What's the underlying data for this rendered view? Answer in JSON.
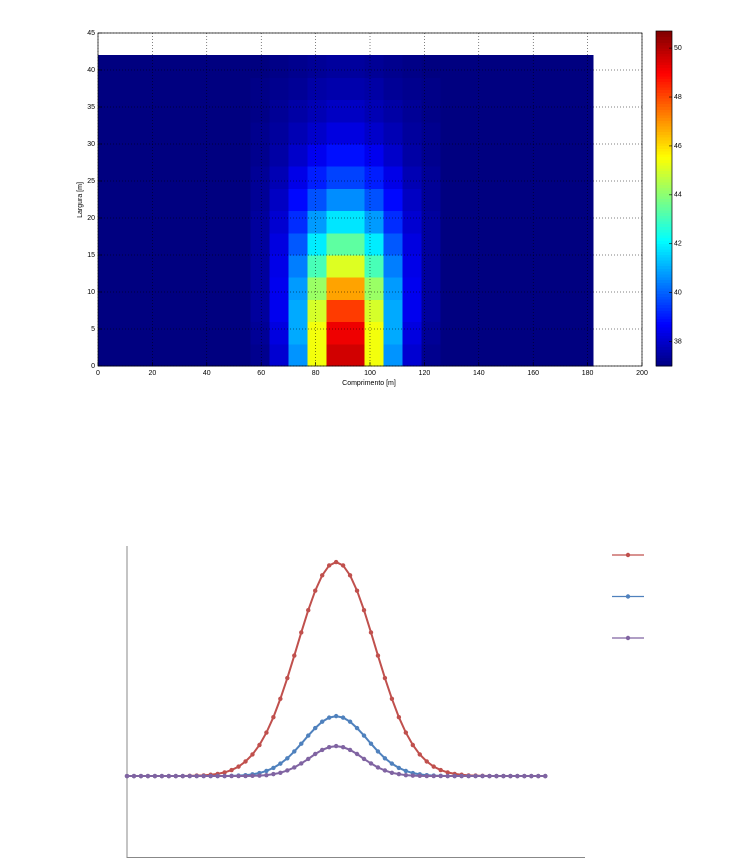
{
  "chart_data": [
    {
      "type": "heatmap",
      "xlabel": "Comprimento [m]",
      "ylabel": "Largura [m]",
      "xlim": [
        0,
        200
      ],
      "ylim": [
        0,
        45
      ],
      "xticks": [
        0,
        20,
        40,
        60,
        80,
        100,
        120,
        140,
        160,
        180,
        200
      ],
      "yticks": [
        0,
        5,
        10,
        15,
        20,
        25,
        30,
        35,
        40,
        45
      ],
      "grid": true,
      "colormap": "jet",
      "clim": [
        37,
        50.7
      ],
      "cticks": [
        38,
        40,
        42,
        44,
        46,
        48,
        50
      ],
      "xbins": [
        0,
        7,
        14,
        21,
        28,
        35,
        42,
        49,
        56,
        63,
        70,
        77,
        84,
        91,
        98,
        105,
        112,
        119,
        126,
        133,
        140,
        147,
        154,
        161,
        168,
        175,
        182
      ],
      "ybins": [
        0,
        3,
        6,
        9,
        12,
        15,
        18,
        21,
        24,
        27,
        30,
        33,
        36,
        39,
        42
      ],
      "z": [
        [
          37,
          37,
          37,
          37,
          37,
          37,
          37,
          37,
          37.2,
          38.1,
          40.7,
          45.4,
          49.6,
          49.6,
          45.4,
          40.7,
          38.1,
          37.2,
          37,
          37,
          37,
          37,
          37,
          37,
          37,
          37
        ],
        [
          37,
          37,
          37,
          37,
          37,
          37,
          37,
          37,
          37.3,
          38.3,
          41,
          45.4,
          49.2,
          49.2,
          45.4,
          41,
          38.3,
          37.3,
          37,
          37,
          37,
          37,
          37,
          37,
          37,
          37
        ],
        [
          37,
          37,
          37,
          37,
          37,
          37,
          37,
          37,
          37.4,
          38.5,
          41,
          45,
          48.2,
          48.2,
          45,
          41,
          38.5,
          37.4,
          37,
          37,
          37,
          37,
          37,
          37,
          37,
          37
        ],
        [
          37,
          37,
          37,
          37,
          37,
          37,
          37,
          37,
          37.4,
          38.5,
          40.8,
          44.2,
          46.8,
          46.8,
          44.2,
          40.8,
          38.5,
          37.4,
          37,
          37,
          37,
          37,
          37,
          37,
          37,
          37
        ],
        [
          37,
          37,
          37,
          37,
          37,
          37,
          37,
          37,
          37.4,
          38.4,
          40.4,
          43.1,
          45.1,
          45.1,
          43.1,
          40.4,
          38.4,
          37.4,
          37,
          37,
          37,
          37,
          37,
          37,
          37,
          37
        ],
        [
          37,
          37,
          37,
          37,
          37,
          37,
          37,
          37,
          37.4,
          38.3,
          39.9,
          41.9,
          43.4,
          43.4,
          41.9,
          39.9,
          38.3,
          37.4,
          37,
          37,
          37,
          37,
          37,
          37,
          37,
          37
        ],
        [
          37,
          37,
          37,
          37,
          37,
          37,
          37,
          37,
          37.4,
          38.1,
          39.3,
          40.8,
          41.8,
          41.8,
          40.8,
          39.3,
          38.1,
          37.4,
          37,
          37,
          37,
          37,
          37,
          37,
          37,
          37
        ],
        [
          37,
          37,
          37,
          37,
          37,
          37,
          37,
          37,
          37.3,
          37.9,
          38.8,
          39.8,
          40.6,
          40.6,
          39.8,
          38.8,
          37.9,
          37.3,
          37,
          37,
          37,
          37,
          37,
          37,
          37,
          37
        ],
        [
          37,
          37,
          37,
          37,
          37,
          37,
          37,
          37,
          37.3,
          37.7,
          38.4,
          39.1,
          39.6,
          39.6,
          39.1,
          38.4,
          37.7,
          37.3,
          37,
          37,
          37,
          37,
          37,
          37,
          37,
          37
        ],
        [
          37,
          37,
          37,
          37,
          37,
          37,
          37,
          37,
          37.2,
          37.5,
          38,
          38.5,
          38.9,
          38.9,
          38.5,
          38,
          37.5,
          37.2,
          37,
          37,
          37,
          37,
          37,
          37,
          37,
          37
        ],
        [
          37,
          37,
          37,
          37,
          37,
          37,
          37,
          37,
          37.2,
          37.4,
          37.7,
          38,
          38.3,
          38.3,
          38,
          37.7,
          37.4,
          37.2,
          37,
          37,
          37,
          37,
          37,
          37,
          37,
          37
        ],
        [
          37,
          37,
          37,
          37,
          37,
          37,
          37,
          37,
          37.1,
          37.3,
          37.5,
          37.7,
          37.9,
          37.9,
          37.7,
          37.5,
          37.3,
          37.1,
          37,
          37,
          37,
          37,
          37,
          37,
          37,
          37
        ],
        [
          37,
          37,
          37,
          37,
          37,
          37,
          37,
          37,
          37.1,
          37.2,
          37.3,
          37.5,
          37.6,
          37.6,
          37.5,
          37.3,
          37.2,
          37.1,
          37,
          37,
          37,
          37,
          37,
          37,
          37,
          37
        ],
        [
          37,
          37,
          37,
          37,
          37,
          37,
          37,
          37,
          37,
          37.1,
          37.2,
          37.3,
          37.4,
          37.4,
          37.3,
          37.2,
          37.1,
          37,
          37,
          37,
          37,
          37,
          37,
          37,
          37,
          37
        ]
      ]
    },
    {
      "type": "line",
      "xlim": [
        0,
        65.7
      ],
      "ylim": [
        -0.383,
        1.075
      ],
      "legend": "upper right",
      "x": [
        0,
        1,
        2,
        3,
        4,
        5,
        6,
        7,
        8,
        9,
        10,
        11,
        12,
        13,
        14,
        15,
        16,
        17,
        18,
        19,
        20,
        21,
        22,
        23,
        24,
        25,
        26,
        27,
        28,
        29,
        30,
        31,
        32,
        33,
        34,
        35,
        36,
        37,
        38,
        39,
        40,
        41,
        42,
        43,
        44,
        45,
        46,
        47,
        48,
        49,
        50,
        51,
        52,
        53,
        54,
        55,
        56,
        57,
        58,
        59,
        60
      ],
      "series": [
        {
          "color": "#c0504d",
          "values": [
            0,
            0,
            0,
            0,
            0,
            0,
            0,
            0,
            0,
            0.001,
            0.002,
            0.003,
            0.006,
            0.01,
            0.017,
            0.028,
            0.044,
            0.068,
            0.101,
            0.145,
            0.203,
            0.275,
            0.361,
            0.458,
            0.563,
            0.671,
            0.775,
            0.866,
            0.938,
            0.984,
            1,
            0.984,
            0.938,
            0.866,
            0.775,
            0.671,
            0.563,
            0.458,
            0.361,
            0.275,
            0.203,
            0.145,
            0.101,
            0.068,
            0.044,
            0.028,
            0.017,
            0.01,
            0.006,
            0.003,
            0.002,
            0.001,
            0,
            0,
            0,
            0,
            0,
            0,
            0,
            0,
            0
          ]
        },
        {
          "color": "#4f81bd",
          "values": [
            0,
            0,
            0,
            0,
            0,
            0,
            0,
            0,
            0,
            0,
            0,
            0,
            0,
            0,
            0,
            0.001,
            0.002,
            0.004,
            0.008,
            0.014,
            0.024,
            0.038,
            0.058,
            0.083,
            0.115,
            0.151,
            0.189,
            0.224,
            0.254,
            0.273,
            0.28,
            0.273,
            0.254,
            0.224,
            0.189,
            0.151,
            0.115,
            0.083,
            0.058,
            0.038,
            0.024,
            0.014,
            0.008,
            0.004,
            0.002,
            0.001,
            0,
            0,
            0,
            0,
            0,
            0,
            0,
            0,
            0,
            0,
            0,
            0,
            0,
            0,
            0
          ]
        },
        {
          "color": "#8064a2",
          "values": [
            0,
            0,
            0,
            0,
            0,
            0,
            0,
            0,
            0,
            0,
            0,
            0,
            0,
            0,
            0,
            0,
            0,
            0,
            0.001,
            0.002,
            0.004,
            0.009,
            0.015,
            0.026,
            0.04,
            0.059,
            0.08,
            0.103,
            0.122,
            0.135,
            0.14,
            0.135,
            0.122,
            0.103,
            0.08,
            0.059,
            0.04,
            0.026,
            0.015,
            0.009,
            0.004,
            0.002,
            0.001,
            0,
            0,
            0,
            0,
            0,
            0,
            0,
            0,
            0,
            0,
            0,
            0,
            0,
            0,
            0,
            0,
            0,
            0
          ]
        }
      ]
    }
  ]
}
